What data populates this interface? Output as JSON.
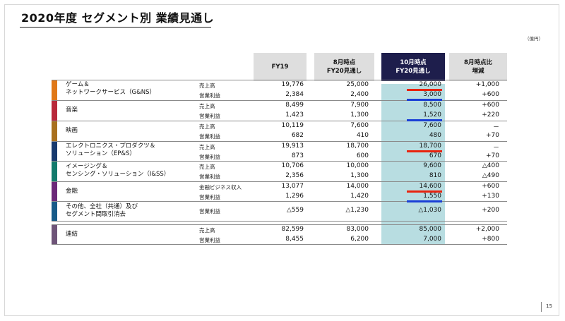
{
  "title": "2020年度 セグメント別 業績見通し",
  "unit_note": "（億円）",
  "page_number": "15",
  "headers": {
    "fy19": "FY19",
    "aug_l1": "8月時点",
    "aug_l2": "FY20見通し",
    "oct_l1": "10月時点",
    "oct_l2": "FY20見通し",
    "diff_l1": "8月時点比",
    "diff_l2": "増減"
  },
  "colors": {
    "gns": "#e07818",
    "music": "#b8283a",
    "movie": "#a8701e",
    "epns": "#17396e",
    "iss": "#127a6c",
    "finance": "#6b2878",
    "other": "#175a88",
    "consolidated": "#6e5478",
    "highlight_col": "#b8dde1",
    "underline_red": "#e8230e",
    "underline_blue": "#1a3fd6"
  },
  "segments": {
    "gns": {
      "name_l1": "ゲーム＆",
      "name_l2": "ネットワークサービス（G&NS）",
      "r1": {
        "metric": "売上高",
        "fy19": "19,776",
        "aug": "25,000",
        "oct": "26,000",
        "diff": "+1,000"
      },
      "r2": {
        "metric": "営業利益",
        "fy19": "2,384",
        "aug": "2,400",
        "oct": "3,000",
        "diff": "+600"
      }
    },
    "music": {
      "name": "音楽",
      "r1": {
        "metric": "売上高",
        "fy19": "8,499",
        "aug": "7,900",
        "oct": "8,500",
        "diff": "+600"
      },
      "r2": {
        "metric": "営業利益",
        "fy19": "1,423",
        "aug": "1,300",
        "oct": "1,520",
        "diff": "+220"
      }
    },
    "movie": {
      "name": "映画",
      "r1": {
        "metric": "売上高",
        "fy19": "10,119",
        "aug": "7,600",
        "oct": "7,600",
        "diff": "－"
      },
      "r2": {
        "metric": "営業利益",
        "fy19": "682",
        "aug": "410",
        "oct": "480",
        "diff": "+70"
      }
    },
    "epns": {
      "name_l1": "エレクトロニクス・プロダクツ＆",
      "name_l2": "ソリューション（EP&S）",
      "r1": {
        "metric": "売上高",
        "fy19": "19,913",
        "aug": "18,700",
        "oct": "18,700",
        "diff": "－"
      },
      "r2": {
        "metric": "営業利益",
        "fy19": "873",
        "aug": "600",
        "oct": "670",
        "diff": "+70"
      }
    },
    "iss": {
      "name_l1": "イメージング＆",
      "name_l2": "センシング・ソリューション（I&SS）",
      "r1": {
        "metric": "売上高",
        "fy19": "10,706",
        "aug": "10,000",
        "oct": "9,600",
        "diff": "△400"
      },
      "r2": {
        "metric": "営業利益",
        "fy19": "2,356",
        "aug": "1,300",
        "oct": "810",
        "diff": "△490"
      }
    },
    "finance": {
      "name": "金融",
      "r1": {
        "metric": "金融ビジネス収入",
        "fy19": "13,077",
        "aug": "14,000",
        "oct": "14,600",
        "diff": "+600"
      },
      "r2": {
        "metric": "営業利益",
        "fy19": "1,296",
        "aug": "1,420",
        "oct": "1,550",
        "diff": "+130"
      }
    },
    "other": {
      "name_l1": "その他、全社（共通）及び",
      "name_l2": "セグメント間取引消去",
      "r1": {
        "metric": "営業利益",
        "fy19": "△559",
        "aug": "△1,230",
        "oct": "△1,030",
        "diff": "+200"
      }
    },
    "consolidated": {
      "name": "連結",
      "r1": {
        "metric": "売上高",
        "fy19": "82,599",
        "aug": "83,000",
        "oct": "85,000",
        "diff": "+2,000"
      },
      "r2": {
        "metric": "営業利益",
        "fy19": "8,455",
        "aug": "6,200",
        "oct": "7,000",
        "diff": "+800"
      }
    }
  }
}
